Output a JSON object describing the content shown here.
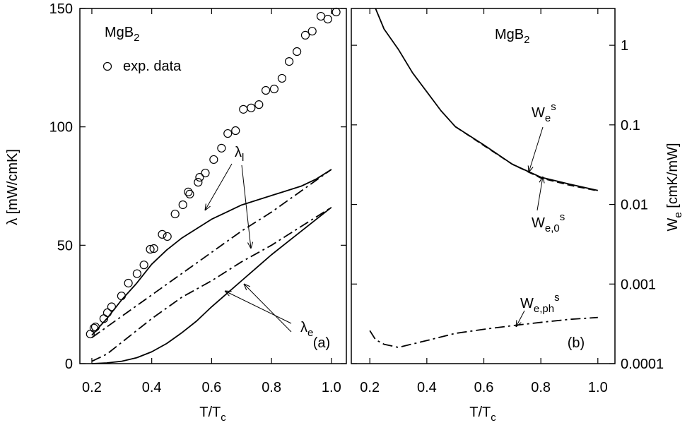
{
  "chart_data": [
    {
      "type": "line",
      "title": {
        "text": "MgB",
        "sub": "2"
      },
      "x_label": {
        "text": "T/T",
        "sub": "c"
      },
      "y_label": "λ [mW/cmK]",
      "y_axis_side": "left",
      "xlim": [
        0.16,
        1.05
      ],
      "ylim": [
        0,
        150
      ],
      "xticks": [
        0.2,
        0.4,
        0.6,
        0.8,
        {
          "value": 1,
          "label": "1.0"
        }
      ],
      "yticks": [
        0,
        50,
        100,
        150
      ],
      "panel_label": "(a)",
      "series": [
        {
          "name": "exp. data",
          "style": "circle",
          "color": "#000000",
          "x": [
            0.195,
            0.207,
            0.212,
            0.24,
            0.252,
            0.266,
            0.299,
            0.322,
            0.351,
            0.374,
            0.395,
            0.407,
            0.435,
            0.452,
            0.478,
            0.504,
            0.522,
            0.527,
            0.555,
            0.56,
            0.579,
            0.607,
            0.633,
            0.654,
            0.68,
            0.706,
            0.732,
            0.758,
            0.781,
            0.809,
            0.835,
            0.859,
            0.885,
            0.913,
            0.936,
            0.965,
            0.988,
            1.016
          ],
          "values": [
            12.5,
            15,
            15.5,
            19,
            21.5,
            24,
            28.6,
            34,
            38,
            41.7,
            48.3,
            48.6,
            54.6,
            53.7,
            63.2,
            67.1,
            72.5,
            71.6,
            76.6,
            78.7,
            80.5,
            86.2,
            91,
            97.2,
            98.4,
            107.4,
            108,
            109.4,
            115.4,
            116,
            120.5,
            127.6,
            131.8,
            138.7,
            140.4,
            146.7,
            145.5,
            148.5
          ]
        },
        {
          "style": "solid",
          "color": "#000000",
          "x": [
            0.2,
            0.25,
            0.3,
            0.35,
            0.4,
            0.45,
            0.5,
            0.55,
            0.6,
            0.65,
            0.7,
            0.75,
            0.8,
            0.85,
            0.9,
            0.95,
            1.0
          ],
          "values": [
            12,
            19,
            27,
            34,
            42,
            48,
            53,
            57,
            61,
            64,
            67,
            69,
            71,
            73,
            75,
            78,
            82
          ]
        },
        {
          "style": "dashdot",
          "color": "#000000",
          "x": [
            0.2,
            0.25,
            0.3,
            0.35,
            0.4,
            0.45,
            0.5,
            0.55,
            0.6,
            0.65,
            0.7,
            0.75,
            0.8,
            0.85,
            0.9,
            0.95,
            1.0
          ],
          "values": [
            11,
            15.5,
            20,
            24.5,
            29,
            33.5,
            38,
            42.5,
            47,
            51.5,
            56,
            60,
            64,
            68.5,
            73,
            77.5,
            82
          ]
        },
        {
          "style": "dashdot",
          "color": "#000000",
          "x": [
            0.2,
            0.25,
            0.3,
            0.35,
            0.4,
            0.45,
            0.5,
            0.55,
            0.6,
            0.65,
            0.7,
            0.75,
            0.8,
            0.85,
            0.9,
            0.95,
            1.0
          ],
          "values": [
            1,
            4,
            9,
            14,
            19,
            23.5,
            28,
            31.5,
            35,
            39,
            43,
            46.5,
            50,
            54,
            58,
            62,
            66
          ]
        },
        {
          "style": "solid",
          "color": "#000000",
          "x": [
            0.2,
            0.25,
            0.3,
            0.35,
            0.4,
            0.45,
            0.5,
            0.55,
            0.6,
            0.65,
            0.7,
            0.75,
            0.8,
            0.85,
            0.9,
            0.95,
            1.0
          ],
          "values": [
            0,
            0.3,
            1,
            2.5,
            5,
            8.5,
            13,
            18,
            24,
            29.5,
            35,
            40.5,
            46,
            51,
            56,
            61,
            66
          ]
        }
      ],
      "annotations": [
        {
          "text": "λ",
          "sub": "l"
        },
        {
          "text": "λ",
          "sub": "e"
        }
      ]
    },
    {
      "type": "line",
      "title": {
        "text": "MgB",
        "sub": "2"
      },
      "x_label": {
        "text": "T/T",
        "sub": "c"
      },
      "y_label": {
        "text": "W",
        "sub": "e",
        "tail": " [cmK/mW]"
      },
      "y_axis_side": "right",
      "log_y": true,
      "xlim": [
        0.135,
        1.06
      ],
      "ylim": [
        0.0001,
        2.9
      ],
      "xticks": [
        0.2,
        0.4,
        0.6,
        0.8,
        {
          "value": 1,
          "label": "1.0"
        }
      ],
      "yticks": [
        0.0001,
        0.001,
        0.01,
        0.1,
        1
      ],
      "panel_label": "(b)",
      "series": [
        {
          "style": "solid",
          "color": "#000000",
          "x": [
            0.22,
            0.25,
            0.3,
            0.35,
            0.4,
            0.45,
            0.5,
            0.6,
            0.7,
            0.8,
            0.9,
            1.0
          ],
          "values": [
            2.9,
            1.6,
            0.89,
            0.45,
            0.26,
            0.15,
            0.095,
            0.056,
            0.032,
            0.022,
            0.018,
            0.015
          ]
        },
        {
          "style": "dashed",
          "color": "#000000",
          "x": [
            0.5,
            0.6,
            0.7,
            0.8,
            0.9,
            1.0
          ],
          "values": [
            0.095,
            0.055,
            0.032,
            0.0215,
            0.0175,
            0.0148
          ]
        },
        {
          "style": "dashdot",
          "color": "#000000",
          "x": [
            0.2,
            0.22,
            0.25,
            0.3,
            0.4,
            0.5,
            0.6,
            0.7,
            0.8,
            0.9,
            1.0
          ],
          "values": [
            0.00026,
            0.0002,
            0.000175,
            0.00016,
            0.000195,
            0.00024,
            0.00027,
            0.0003,
            0.00033,
            0.00036,
            0.00038
          ]
        }
      ],
      "annotations": [
        {
          "text": "W",
          "sub": "e",
          "sup": "s"
        },
        {
          "text": "W",
          "sub": "e,0",
          "sup": "s"
        },
        {
          "text": "W",
          "sub": "e,ph",
          "sup": "s"
        }
      ]
    }
  ]
}
